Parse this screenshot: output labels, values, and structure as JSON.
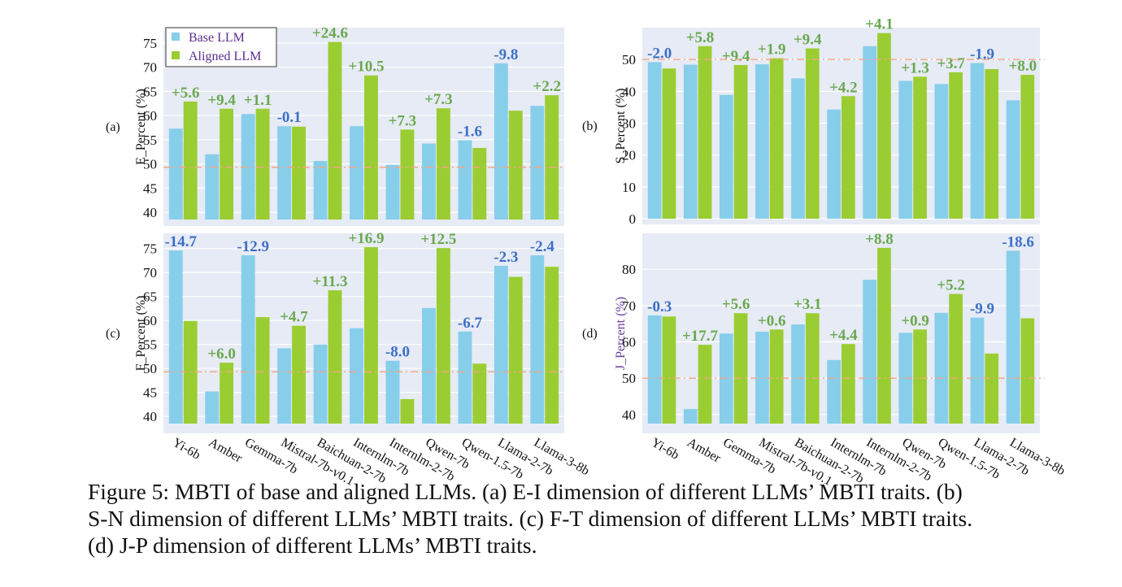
{
  "colors": {
    "base": "#87ceeb",
    "aligned": "#9acd32",
    "plot_bg": "#e6ebf5",
    "gridline": "#ffffff",
    "reference_line": "#f4a582",
    "positive_label": "#6aa84f",
    "negative_label": "#3d6fc6",
    "legend_text": "#5b2c8f",
    "j_axis_label": "#6a3d9a"
  },
  "legend": {
    "items": [
      "Base LLM",
      "Aligned LLM"
    ],
    "position": "top-left of panel (a)"
  },
  "chart_data": [
    {
      "panel": "(a)",
      "type": "bar",
      "ylabel": "E_Percent (%)",
      "ylim": [
        38.5,
        77.5
      ],
      "yticks": [
        40,
        45,
        50,
        55,
        60,
        65,
        70,
        75
      ],
      "reference_line": 49.3,
      "categories": [
        "Yi-6b",
        "Amber",
        "Gemma-7b",
        "Mistral-7b-v0.1",
        "Baichuan-2-7b",
        "Internlm-7b",
        "Internlm-2-7b",
        "Qwen-7b",
        "Qwen-1.5-7b",
        "Llama-2-7b",
        "Llama-3-8b"
      ],
      "series": [
        {
          "name": "Base LLM",
          "values": [
            57.3,
            52.0,
            60.3,
            57.8,
            50.6,
            57.8,
            49.8,
            54.2,
            54.9,
            70.8,
            62.0
          ]
        },
        {
          "name": "Aligned LLM",
          "values": [
            62.9,
            61.4,
            61.4,
            57.7,
            75.2,
            68.3,
            57.1,
            61.5,
            53.3,
            61.0,
            64.2
          ]
        }
      ],
      "annotations": [
        "+5.6",
        "+9.4",
        "+1.1",
        "-0.1",
        "+24.6",
        "+10.5",
        "+7.3",
        "+7.3",
        "-1.6",
        "-9.8",
        "+2.2"
      ]
    },
    {
      "panel": "(b)",
      "type": "bar",
      "ylabel": "S_Percent (%)",
      "ylim": [
        0,
        59
      ],
      "yticks": [
        0,
        10,
        20,
        30,
        40,
        50
      ],
      "reference_line": 50,
      "categories": [
        "Yi-6b",
        "Amber",
        "Gemma-7b",
        "Mistral-7b-v0.1",
        "Baichuan-2-7b",
        "Internlm-7b",
        "Internlm-2-7b",
        "Qwen-7b",
        "Qwen-1.5-7b",
        "Llama-2-7b",
        "Llama-3-8b"
      ],
      "series": [
        {
          "name": "Base LLM",
          "values": [
            49.2,
            48.4,
            38.9,
            48.5,
            44.1,
            34.3,
            54.2,
            43.3,
            42.3,
            48.9,
            37.2
          ]
        },
        {
          "name": "Aligned LLM",
          "values": [
            47.2,
            54.2,
            48.3,
            50.4,
            53.5,
            38.5,
            58.3,
            44.6,
            46.0,
            47.0,
            45.2
          ]
        }
      ],
      "annotations": [
        "-2.0",
        "+5.8",
        "+9.4",
        "+1.9",
        "+9.4",
        "+4.2",
        "+4.1",
        "+1.3",
        "+3.7",
        "-1.9",
        "+8.0"
      ]
    },
    {
      "panel": "(c)",
      "type": "bar",
      "ylabel": "F_Percent (%)",
      "ylim": [
        38.5,
        77.5
      ],
      "yticks": [
        40,
        45,
        50,
        55,
        60,
        65,
        70,
        75
      ],
      "reference_line": 49.3,
      "categories": [
        "Yi-6b",
        "Amber",
        "Gemma-7b",
        "Mistral-7b-v0.1",
        "Baichuan-2-7b",
        "Internlm-7b",
        "Internlm-2-7b",
        "Qwen-7b",
        "Qwen-1.5-7b",
        "Llama-2-7b",
        "Llama-3-8b"
      ],
      "series": [
        {
          "name": "Base LLM",
          "values": [
            74.6,
            45.2,
            73.6,
            54.2,
            55.0,
            58.4,
            51.6,
            62.6,
            57.7,
            71.4,
            73.6
          ]
        },
        {
          "name": "Aligned LLM",
          "values": [
            59.9,
            51.2,
            60.7,
            58.9,
            66.3,
            75.3,
            43.6,
            75.1,
            51.0,
            69.1,
            71.2
          ]
        }
      ],
      "annotations": [
        "-14.7",
        "+6.0",
        "-12.9",
        "+4.7",
        "+11.3",
        "+16.9",
        "-8.0",
        "+12.5",
        "-6.7",
        "-2.3",
        "-2.4"
      ]
    },
    {
      "panel": "(d)",
      "type": "bar",
      "ylabel": "J_Percent (%)",
      "ylim": [
        37.5,
        89
      ],
      "yticks": [
        40,
        50,
        60,
        70,
        80
      ],
      "reference_line": 50,
      "categories": [
        "Yi-6b",
        "Amber",
        "Gemma-7b",
        "Mistral-7b-v0.1",
        "Baichuan-2-7b",
        "Internlm-7b",
        "Internlm-2-7b",
        "Qwen-7b",
        "Qwen-1.5-7b",
        "Llama-2-7b",
        "Llama-3-8b"
      ],
      "series": [
        {
          "name": "Base LLM",
          "values": [
            67.3,
            41.5,
            62.3,
            62.8,
            64.8,
            55.0,
            77.1,
            62.5,
            68.0,
            66.7,
            85.1
          ]
        },
        {
          "name": "Aligned LLM",
          "values": [
            67.0,
            59.2,
            67.9,
            63.4,
            67.9,
            59.4,
            85.9,
            63.4,
            73.2,
            56.8,
            66.5
          ]
        }
      ],
      "annotations": [
        "-0.3",
        "+17.7",
        "+5.6",
        "+0.6",
        "+3.1",
        "+4.4",
        "+8.8",
        "+0.9",
        "+5.2",
        "-9.9",
        "-18.6"
      ]
    }
  ],
  "caption": {
    "lines": [
      "Figure 5: MBTI of base and aligned LLMs. (a) E-I dimension of different LLMs’ MBTI traits. (b)",
      "S-N dimension of different LLMs’ MBTI traits. (c) F-T dimension of different LLMs’ MBTI traits.",
      "(d) J-P dimension of different LLMs’ MBTI traits."
    ]
  }
}
